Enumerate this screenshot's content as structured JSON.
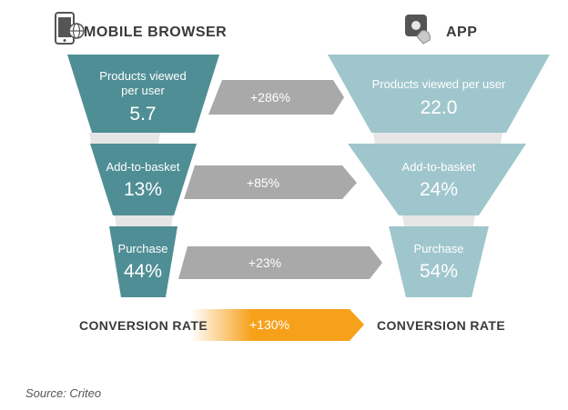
{
  "left_title": "MOBILE BROWSER",
  "right_title": "APP",
  "left_footer": "CONVERSION RATE",
  "right_footer": "CONVERSION RATE",
  "source": "Source: Criteo",
  "colors": {
    "browser": "#4f8e95",
    "app": "#9fc6cc",
    "neck": "#e6e6e6",
    "arrow": "#a9a9a9",
    "highlight": "#f7a11b"
  },
  "icons": {
    "left": "smartphone-globe-icon",
    "right": "app-tap-icon"
  },
  "chart_data": {
    "type": "funnel-comparison",
    "stages": [
      {
        "label": "Products viewed per user",
        "browser_value": "5.7",
        "app_value": "22.0",
        "change": "+286%"
      },
      {
        "label": "Add-to-basket",
        "browser_value": "13%",
        "app_value": "24%",
        "change": "+85%"
      },
      {
        "label": "Purchase",
        "browser_value": "44%",
        "app_value": "54%",
        "change": "+23%"
      }
    ],
    "conversion_rate_change": "+130%"
  }
}
